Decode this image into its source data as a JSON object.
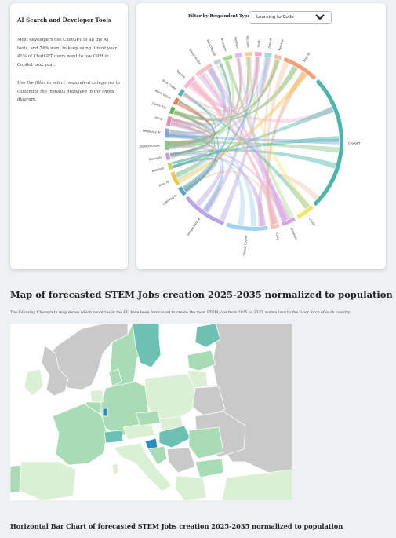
{
  "info": {
    "title": "AI Search and Developer Tools",
    "text": "Most developers use ChatGPT of all the AI tools, and 74% want to keep using it next year. 41% of ChatGPT users want to use GitHub Copilot next year.",
    "hint": "Use the filter to select respondent categories to customize the insights displayed in the chord diagram."
  },
  "filter": {
    "label": "Filter by Respondent Type:",
    "selected": "Learning to Code",
    "icon": "chevron-down-icon"
  },
  "chord": {
    "groups": [
      {
        "label": "Bing AI",
        "color": "#f4a07a"
      },
      {
        "label": "ChatGPT",
        "color": "#4cb6ac"
      },
      {
        "label": "Claude",
        "color": "#f0e66e"
      },
      {
        "label": "Codeium",
        "color": "#d7a6e3"
      },
      {
        "label": "Cody",
        "color": "#f7c6b0"
      },
      {
        "label": "GitHub Copilot",
        "color": "#9fd3f0"
      },
      {
        "label": "Google Bard AI",
        "color": "#b9a4e6"
      },
      {
        "label": "Lightning AI",
        "color": "#54a7b7"
      },
      {
        "label": "Meta AI",
        "color": "#f2c14e"
      },
      {
        "label": "Metabob",
        "color": "#bcd86f"
      },
      {
        "label": "Neeva AI",
        "color": "#c59ad6"
      },
      {
        "label": "OpenAI Codex",
        "color": "#86c98a"
      },
      {
        "label": "Perplexity AI",
        "color": "#7fa8d6"
      },
      {
        "label": "Phind",
        "color": "#f08bb0"
      },
      {
        "label": "Quora Poe",
        "color": "#6ab04c"
      },
      {
        "label": "Replit Ghost",
        "color": "#e67e5e"
      },
      {
        "label": "Rask Coder",
        "color": "#4db6ac"
      },
      {
        "label": "Tabnine",
        "color": "#f7b6d8"
      },
      {
        "label": "Visual Studio",
        "color": "#f5c0c7"
      },
      {
        "label": "WhatTheDiff",
        "color": "#c5d0d6"
      },
      {
        "label": "Whisperer",
        "color": "#a6e08c"
      },
      {
        "label": "Wolfram",
        "color": "#e0b8f0"
      },
      {
        "label": "You.com",
        "color": "#f7d08a"
      },
      {
        "label": "Snyk",
        "color": "#f2a8c4"
      },
      {
        "label": "Zyte AI",
        "color": "#9fdbe3"
      },
      {
        "label": "Replit AI",
        "color": "#f6c1a6"
      }
    ],
    "group_values": [
      8,
      30,
      4,
      3,
      2,
      9,
      10,
      2,
      3,
      1.5,
      1.5,
      2,
      2,
      2,
      1.5,
      1.5,
      1.5,
      3,
      4,
      1.5,
      2,
      1.5,
      1.5,
      1.5,
      1.5,
      1.5
    ]
  },
  "map": {
    "title": "Map of forecasted STEM Jobs creation 2025-2035 normalized to population",
    "description": "The following Choropleth map shows which countries in the EU have been forecasted to create the most STEM jobs from 2025 to 2035, normalized to the labor force of each country.",
    "colors": {
      "no_data": "#c9c9c9",
      "low": "#d9f0d3",
      "mid": "#a8dcb5",
      "high": "#6cc1b3",
      "max": "#2b8cbe",
      "sea": "#ffffff"
    }
  },
  "next_section": {
    "title": "Horizontal Bar Chart of forecasted STEM Jobs creation 2025-2035 normalized to population"
  }
}
